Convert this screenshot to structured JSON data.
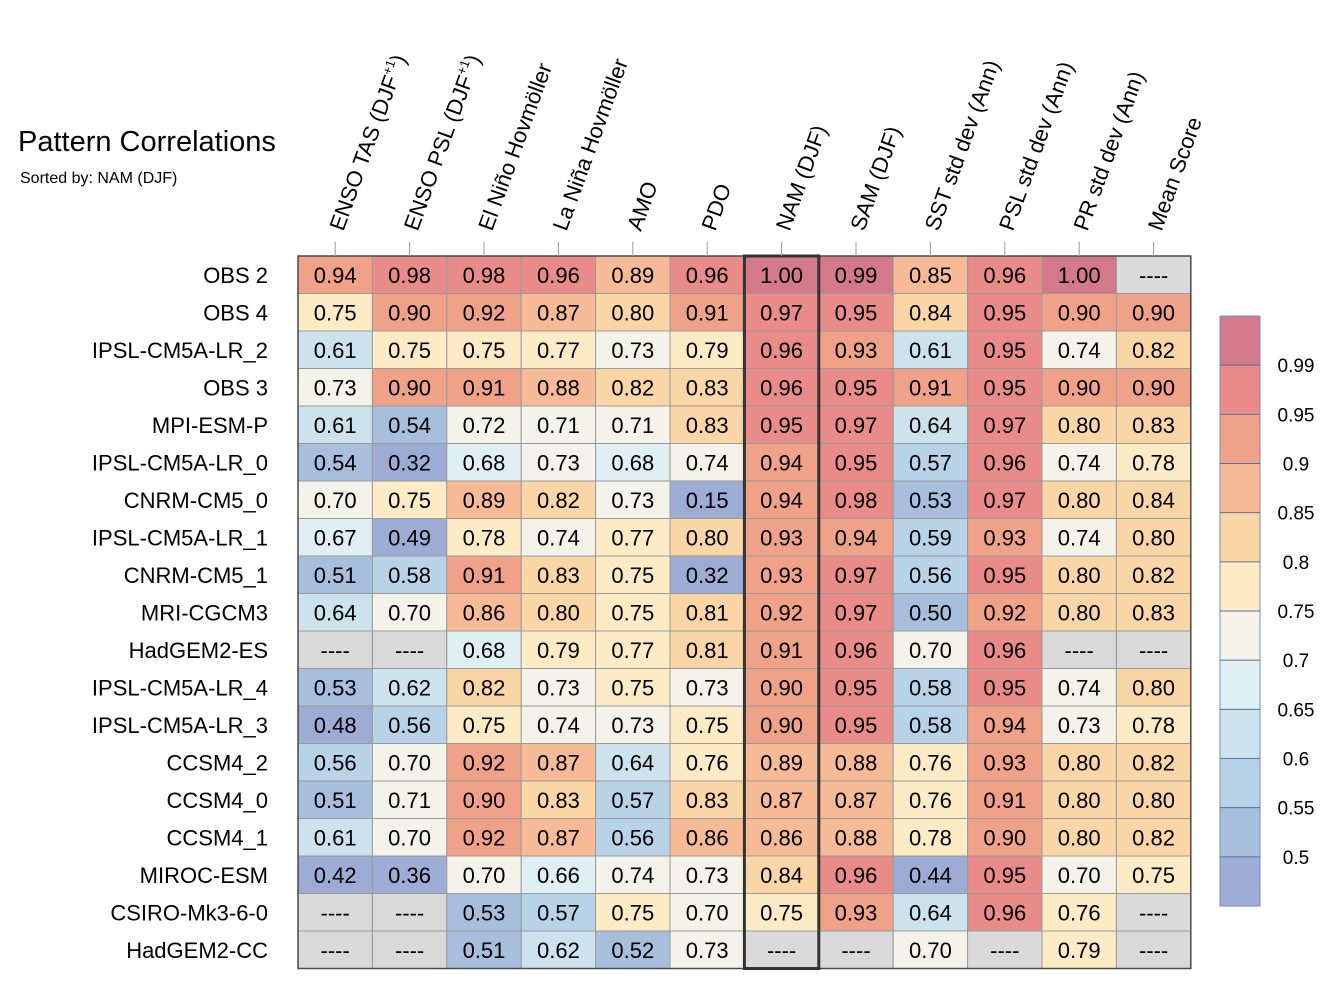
{
  "title": "Pattern Correlations",
  "subtitle": "Sorted by: NAM (DJF)",
  "chart_data": {
    "type": "heatmap",
    "title": "Pattern Correlations",
    "subtitle": "Sorted by: NAM (DJF)",
    "columns": [
      "ENSO TAS (DJF+1)",
      "ENSO PSL (DJF+1)",
      "El Niño Hovmöller",
      "La Niña Hovmöller",
      "AMO",
      "PDO",
      "NAM (DJF)",
      "SAM (DJF)",
      "SST std dev (Ann)",
      "PSL std dev (Ann)",
      "PR std dev (Ann)",
      "Mean Score"
    ],
    "rows": [
      "OBS 2",
      "OBS 4",
      "IPSL-CM5A-LR_2",
      "OBS 3",
      "MPI-ESM-P",
      "IPSL-CM5A-LR_0",
      "CNRM-CM5_0",
      "IPSL-CM5A-LR_1",
      "CNRM-CM5_1",
      "MRI-CGCM3",
      "HadGEM2-ES",
      "IPSL-CM5A-LR_4",
      "IPSL-CM5A-LR_3",
      "CCSM4_2",
      "CCSM4_0",
      "CCSM4_1",
      "MIROC-ESM",
      "CSIRO-Mk3-6-0",
      "HadGEM2-CC"
    ],
    "values": [
      [
        0.94,
        0.98,
        0.98,
        0.96,
        0.89,
        0.96,
        1.0,
        0.99,
        0.85,
        0.96,
        1.0,
        null
      ],
      [
        0.75,
        0.9,
        0.92,
        0.87,
        0.8,
        0.91,
        0.97,
        0.95,
        0.84,
        0.95,
        0.9,
        0.9
      ],
      [
        0.61,
        0.75,
        0.75,
        0.77,
        0.73,
        0.79,
        0.96,
        0.93,
        0.61,
        0.95,
        0.74,
        0.82
      ],
      [
        0.73,
        0.9,
        0.91,
        0.88,
        0.82,
        0.83,
        0.96,
        0.95,
        0.91,
        0.95,
        0.9,
        0.9
      ],
      [
        0.61,
        0.54,
        0.72,
        0.71,
        0.71,
        0.83,
        0.95,
        0.97,
        0.64,
        0.97,
        0.8,
        0.83
      ],
      [
        0.54,
        0.32,
        0.68,
        0.73,
        0.68,
        0.74,
        0.94,
        0.95,
        0.57,
        0.96,
        0.74,
        0.78
      ],
      [
        0.7,
        0.75,
        0.89,
        0.82,
        0.73,
        0.15,
        0.94,
        0.98,
        0.53,
        0.97,
        0.8,
        0.84
      ],
      [
        0.67,
        0.49,
        0.78,
        0.74,
        0.77,
        0.8,
        0.93,
        0.94,
        0.59,
        0.93,
        0.74,
        0.8
      ],
      [
        0.51,
        0.58,
        0.91,
        0.83,
        0.75,
        0.32,
        0.93,
        0.97,
        0.56,
        0.95,
        0.8,
        0.82
      ],
      [
        0.64,
        0.7,
        0.86,
        0.8,
        0.75,
        0.81,
        0.92,
        0.97,
        0.5,
        0.92,
        0.8,
        0.83
      ],
      [
        null,
        null,
        0.68,
        0.79,
        0.77,
        0.81,
        0.91,
        0.96,
        0.7,
        0.96,
        null,
        null
      ],
      [
        0.53,
        0.62,
        0.82,
        0.73,
        0.75,
        0.73,
        0.9,
        0.95,
        0.58,
        0.95,
        0.74,
        0.8
      ],
      [
        0.48,
        0.56,
        0.75,
        0.74,
        0.73,
        0.75,
        0.9,
        0.95,
        0.58,
        0.94,
        0.73,
        0.78
      ],
      [
        0.56,
        0.7,
        0.92,
        0.87,
        0.64,
        0.76,
        0.89,
        0.88,
        0.76,
        0.93,
        0.8,
        0.82
      ],
      [
        0.51,
        0.71,
        0.9,
        0.83,
        0.57,
        0.83,
        0.87,
        0.87,
        0.76,
        0.91,
        0.8,
        0.8
      ],
      [
        0.61,
        0.7,
        0.92,
        0.87,
        0.56,
        0.86,
        0.86,
        0.88,
        0.78,
        0.9,
        0.8,
        0.82
      ],
      [
        0.42,
        0.36,
        0.7,
        0.66,
        0.74,
        0.73,
        0.84,
        0.96,
        0.44,
        0.95,
        0.7,
        0.75
      ],
      [
        null,
        null,
        0.53,
        0.57,
        0.75,
        0.7,
        0.75,
        0.93,
        0.64,
        0.96,
        0.76,
        null
      ],
      [
        null,
        null,
        0.51,
        0.62,
        0.52,
        0.73,
        null,
        null,
        0.7,
        null,
        0.79,
        null
      ]
    ],
    "missing_label": "----",
    "highlighted_column": "NAM (DJF)",
    "colorbar": {
      "labels": [
        "0.99",
        "0.95",
        "0.9",
        "0.85",
        "0.8",
        "0.75",
        "0.7",
        "0.65",
        "0.6",
        "0.55",
        "0.5"
      ],
      "levels": [
        0.99,
        0.95,
        0.9,
        0.85,
        0.8,
        0.75,
        0.7,
        0.65,
        0.6,
        0.55,
        0.5
      ],
      "colors": [
        "#d3798a",
        "#e98b88",
        "#f0a289",
        "#f6bb96",
        "#fad6a6",
        "#fdebc6",
        "#f4f3e9",
        "#e0eff3",
        "#cce2ec",
        "#b8d3e7",
        "#a7bedc",
        "#9dacd5"
      ],
      "missing_color": "#d9d9d9"
    }
  }
}
